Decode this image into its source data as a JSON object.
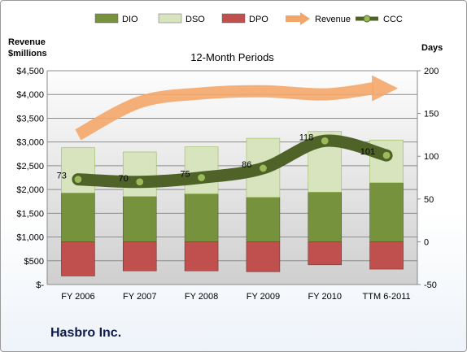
{
  "chart_data": {
    "type": "bar",
    "title": "12-Month Periods",
    "company": "Hasbro Inc.",
    "left_axis_title": [
      "Revenue",
      "$millions"
    ],
    "right_axis_title": "Days",
    "categories": [
      "FY 2006",
      "FY 2007",
      "FY 2008",
      "FY 2009",
      "FY 2010",
      "TTM 6-2011"
    ],
    "left_axis": {
      "range": [
        0,
        4500
      ],
      "step": 500,
      "tick_labels": [
        "$-",
        "$500",
        "$1,000",
        "$1,500",
        "$2,000",
        "$2,500",
        "$3,000",
        "$3,500",
        "$4,000",
        "$4,500"
      ]
    },
    "right_axis": {
      "range": [
        -50,
        200
      ],
      "step": 50,
      "tick_labels": [
        "-50",
        "0",
        "50",
        "100",
        "150",
        "200"
      ]
    },
    "grid": true,
    "legend": {
      "placement": "top"
    },
    "series": [
      {
        "name": "DIO",
        "axis": "right",
        "color": "#76923c",
        "values": [
          57,
          53,
          56,
          52,
          58,
          69
        ]
      },
      {
        "name": "DSO",
        "axis": "right",
        "color": "#d7e4bd",
        "values": [
          53,
          52,
          55,
          69,
          71,
          50
        ]
      },
      {
        "name": "DPO",
        "axis": "right",
        "color": "#c0504d",
        "values": [
          -40,
          -34,
          -34,
          -35,
          -27,
          -32
        ]
      },
      {
        "name": "Revenue",
        "axis": "left",
        "color": "#f4a66a",
        "values": [
          3152,
          3838,
          4022,
          4068,
          4002,
          4130
        ]
      },
      {
        "name": "CCC",
        "axis": "right",
        "color": "#4f6228",
        "values": [
          73,
          70,
          75,
          86,
          118,
          101
        ],
        "labels": [
          "73",
          "70",
          "75",
          "86",
          "118",
          "101"
        ]
      }
    ]
  }
}
